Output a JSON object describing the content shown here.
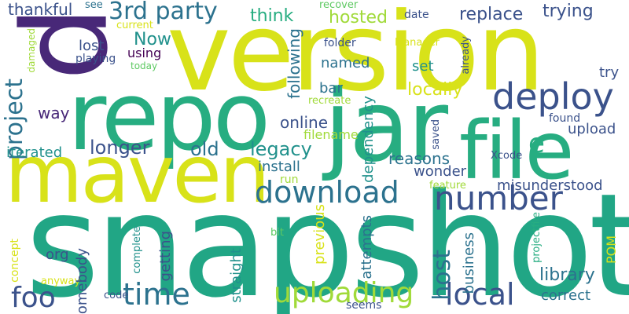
{
  "palette": {
    "c1": "#440154",
    "c2": "#3b528b",
    "c3": "#21918c",
    "c4": "#27ad81",
    "c5": "#5ec962",
    "c6": "#a0da39",
    "c7": "#d8e219",
    "c8": "#fde725",
    "c9": "#2c728e",
    "c10": "#482878"
  },
  "words": {
    "snapshot": "snapshot",
    "version": "version",
    "repo": "repo",
    "jar": "jar",
    "maven": "maven",
    "file": "file",
    "p": "p",
    "deploy": "deploy",
    "number": "number",
    "download": "download",
    "time": "time",
    "uploading": "uploading",
    "local": "local",
    "foo": "foo",
    "third_party": "3rd party",
    "project": "project",
    "replace": "replace",
    "trying": "trying",
    "think": "think",
    "hosted": "hosted",
    "date": "date",
    "thankful": "thankful",
    "see": "see",
    "recover": "recover",
    "current": "current",
    "now": "Now",
    "lost": "lost",
    "using": "using",
    "playing": "playing",
    "today": "today",
    "damaged": "damaged",
    "folder": "folder",
    "manager": "Manager",
    "already": "already",
    "named": "named",
    "set": "set",
    "try": "try",
    "bar": "bar",
    "recreate": "recreate",
    "locally": "locally",
    "found": "found",
    "upload": "upload",
    "following": "following",
    "way": "way",
    "online": "online",
    "filename": "filename",
    "dependency": "dependency",
    "saved": "saved",
    "e": "e",
    "longer": "longer",
    "legacy": "legacy",
    "old": "old",
    "iterated": "iterated",
    "install": "install",
    "reasons": "reasons",
    "xcode": "Xcode",
    "wonder": "wonder",
    "feature": "feature",
    "misunderstood": "misunderstood",
    "run": "run",
    "library": "library",
    "host": "host",
    "org": "org",
    "concept": "concept",
    "getting": "getting",
    "somebody": "somebody",
    "complete": "complete",
    "straight": "straight",
    "bit": "bit",
    "previous": "previous",
    "attempts": "attempts",
    "business": "business",
    "projectfile": "projectfile",
    "pom": "POM",
    "correct": "correct",
    "anyway": "anyway",
    "code": "code",
    "seems": "seems"
  }
}
